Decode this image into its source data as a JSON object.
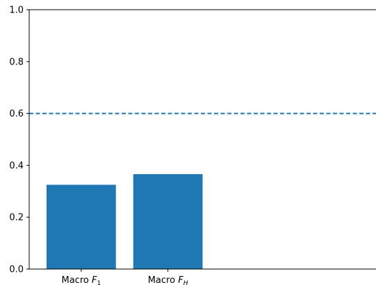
{
  "chart_data": {
    "type": "bar",
    "categories": [
      {
        "prefix": "Macro ",
        "symbol": "F",
        "sub": "1"
      },
      {
        "prefix": "Macro ",
        "symbol": "F",
        "sub": "H"
      }
    ],
    "values": [
      0.325,
      0.366
    ],
    "ylim": [
      0,
      1.0
    ],
    "xlim": [
      -0.6,
      3.4
    ],
    "yticks": [
      "0.0",
      "0.2",
      "0.4",
      "0.6",
      "0.8",
      "1.0"
    ],
    "reference_line": {
      "y": 0.6,
      "style": "dashed"
    },
    "title": "",
    "xlabel": "",
    "ylabel": "",
    "grid": false,
    "colors": {
      "bar": "#1f77b4",
      "reference": "#1f77b4",
      "axis": "#000000"
    }
  }
}
